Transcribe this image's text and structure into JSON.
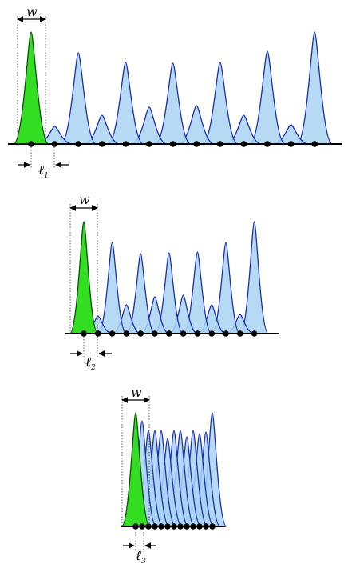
{
  "colors": {
    "green_fill": "#33dd22",
    "green_stroke": "#0b4f0b",
    "blue_fill": "#a9d4f2",
    "blue_stroke": "#1c2fb0",
    "axis": "#000000",
    "dot": "#000000",
    "guide": "#555555"
  },
  "labels": {
    "width": "w",
    "ell": "ℓ",
    "sub1": "1",
    "sub2": "2",
    "sub3": "3"
  },
  "panels": [
    {
      "spacing_label": "ℓ₁",
      "peaks": 13,
      "tall_every_other": true
    },
    {
      "spacing_label": "ℓ₂",
      "peaks": 13,
      "tall_every_other": true
    },
    {
      "spacing_label": "ℓ₃",
      "peaks": 13,
      "tall_every_other": false
    }
  ]
}
